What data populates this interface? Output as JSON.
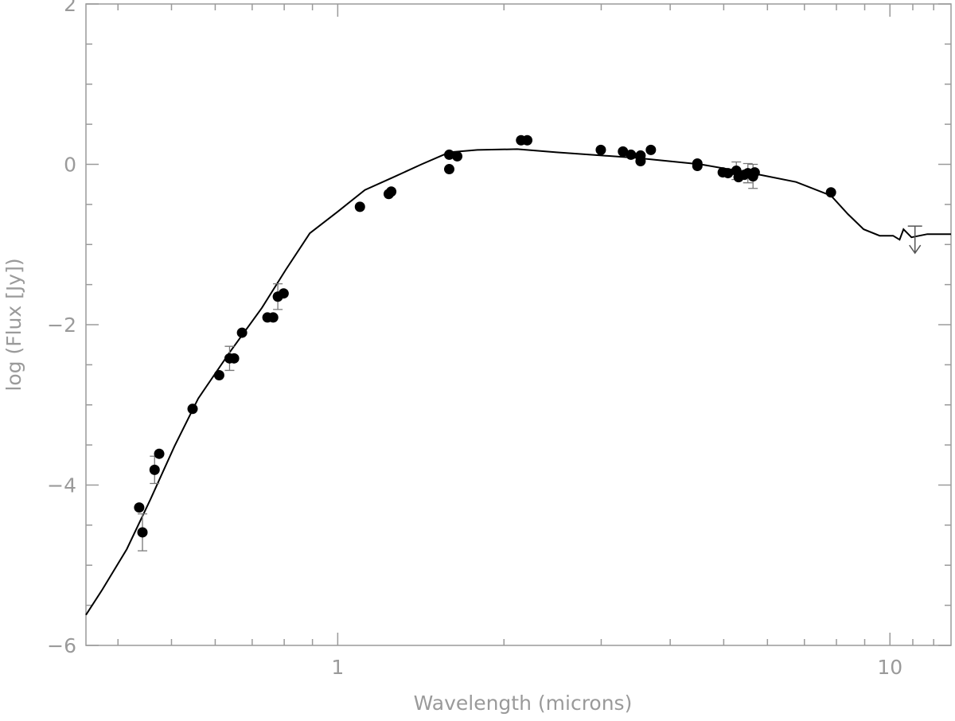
{
  "chart_data": {
    "type": "scatter",
    "xlabel": "Wavelength (microns)",
    "ylabel": "log (Flux [Jy])",
    "xscale": "log",
    "xlim": [
      0.35,
      12.9
    ],
    "ylim": [
      -6,
      2
    ],
    "xticks": [
      1,
      10
    ],
    "xminorticks": [
      0.4,
      0.5,
      0.6,
      0.7,
      0.8,
      0.9,
      2,
      3,
      4,
      5,
      6,
      7,
      8,
      9,
      11,
      12
    ],
    "yticks": [
      {
        "value": -6,
        "label": "−6"
      },
      {
        "value": -4,
        "label": "−4"
      },
      {
        "value": -2,
        "label": "−2"
      },
      0,
      2
    ],
    "yminorticks": [
      -5.5,
      -5,
      -4.5,
      -3.5,
      -3,
      -2.5,
      -1.5,
      -1,
      -0.5,
      0.5,
      1,
      1.5
    ],
    "points": {
      "color": "#000000",
      "x": [
        0.437,
        0.443,
        0.466,
        0.475,
        0.546,
        0.61,
        0.637,
        0.649,
        0.671,
        0.746,
        0.764,
        0.779,
        0.798,
        1.097,
        1.237,
        1.25,
        1.592,
        1.592,
        1.646,
        2.148,
        2.204,
        2.995,
        3.285,
        3.396,
        3.535,
        3.535,
        3.69,
        4.48,
        4.48,
        4.98,
        5.09,
        5.27,
        5.32,
        5.45,
        5.53,
        5.65,
        5.69,
        7.82
      ],
      "y": [
        -4.28,
        -4.59,
        -3.81,
        -3.61,
        -3.05,
        -2.63,
        -2.42,
        -2.42,
        -2.1,
        -1.91,
        -1.91,
        -1.65,
        -1.61,
        -0.53,
        -0.37,
        -0.34,
        -0.06,
        0.12,
        0.1,
        0.3,
        0.3,
        0.18,
        0.16,
        0.12,
        0.11,
        0.04,
        0.18,
        0.01,
        -0.02,
        -0.1,
        -0.11,
        -0.08,
        -0.16,
        -0.13,
        -0.11,
        -0.15,
        -0.1,
        -0.35
      ],
      "errors": [
        null,
        0.23,
        0.17,
        null,
        null,
        null,
        0.15,
        null,
        null,
        null,
        null,
        0.16,
        null,
        null,
        null,
        null,
        null,
        null,
        null,
        null,
        null,
        null,
        null,
        null,
        null,
        null,
        null,
        null,
        null,
        null,
        null,
        0.11,
        null,
        null,
        0.12,
        0.15,
        null,
        null
      ]
    },
    "upper_limits": {
      "color": "#000000",
      "x": [
        11.1
      ],
      "y": [
        -0.77
      ]
    },
    "model": {
      "color": "#000000",
      "x": [
        0.35,
        0.375,
        0.415,
        0.458,
        0.506,
        0.559,
        0.638,
        0.729,
        0.806,
        0.89,
        1.0,
        1.12,
        1.262,
        1.418,
        1.592,
        1.79,
        2.114,
        2.49,
        3.47,
        4.54,
        5.72,
        6.76,
        7.82,
        8.39,
        8.96,
        9.58,
        10.13,
        10.41,
        10.58,
        10.94,
        11.69,
        12.9
      ],
      "y": [
        -5.62,
        -5.3,
        -4.8,
        -4.18,
        -3.52,
        -2.92,
        -2.34,
        -1.79,
        -1.31,
        -0.86,
        -0.59,
        -0.32,
        -0.16,
        0.0,
        0.15,
        0.18,
        0.19,
        0.15,
        0.08,
        0.0,
        -0.12,
        -0.22,
        -0.39,
        -0.62,
        -0.81,
        -0.89,
        -0.89,
        -0.94,
        -0.81,
        -0.91,
        -0.87,
        -0.87
      ]
    }
  }
}
